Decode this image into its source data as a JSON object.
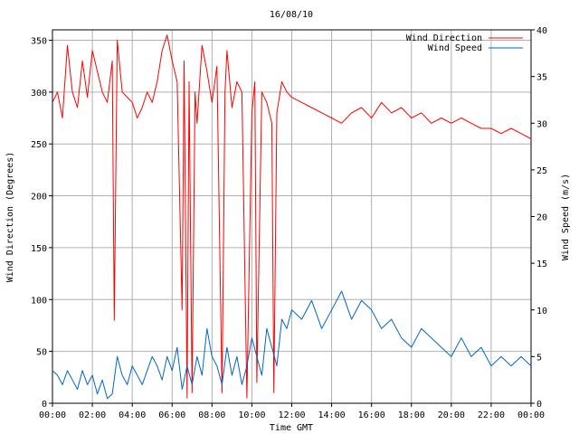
{
  "chart_data": {
    "type": "line",
    "title": "16/08/10",
    "xlabel": "Time GMT",
    "ylabel_left": "Wind Direction (Degrees)",
    "ylabel_right": "Wind Speed (m/s)",
    "x_ticks": [
      "00:00",
      "02:00",
      "04:00",
      "06:00",
      "08:00",
      "10:00",
      "12:00",
      "14:00",
      "16:00",
      "18:00",
      "20:00",
      "22:00",
      "00:00"
    ],
    "x_range_hours": [
      0,
      24
    ],
    "y_left_ticks": [
      0,
      50,
      100,
      150,
      200,
      250,
      300,
      350
    ],
    "y_left_range": [
      0,
      360
    ],
    "y_right_ticks": [
      0,
      5,
      10,
      15,
      20,
      25,
      30,
      35,
      40
    ],
    "y_right_range": [
      0,
      40
    ],
    "grid": true,
    "legend_position": "top-right",
    "series": [
      {
        "name": "Wind Direction",
        "axis": "left",
        "color": "#ff0000",
        "x": [
          0,
          0.25,
          0.5,
          0.75,
          1,
          1.25,
          1.5,
          1.75,
          2,
          2.25,
          2.5,
          2.75,
          3,
          3.1,
          3.25,
          3.5,
          3.75,
          4,
          4.25,
          4.5,
          4.75,
          5,
          5.25,
          5.5,
          5.75,
          6,
          6.25,
          6.5,
          6.6,
          6.75,
          6.85,
          7,
          7.15,
          7.25,
          7.5,
          7.75,
          8,
          8.25,
          8.5,
          8.65,
          8.75,
          9,
          9.25,
          9.5,
          9.75,
          10,
          10.15,
          10.25,
          10.5,
          10.75,
          11,
          11.1,
          11.25,
          11.5,
          11.75,
          12,
          12.5,
          13,
          13.5,
          14,
          14.5,
          15,
          15.5,
          16,
          16.5,
          17,
          17.5,
          18,
          18.5,
          19,
          19.5,
          20,
          20.5,
          21,
          21.5,
          22,
          22.5,
          23,
          23.5,
          24
        ],
        "values": [
          290,
          300,
          275,
          345,
          300,
          285,
          330,
          295,
          340,
          320,
          300,
          290,
          330,
          80,
          350,
          300,
          295,
          290,
          275,
          285,
          300,
          290,
          310,
          340,
          355,
          330,
          310,
          90,
          330,
          5,
          310,
          10,
          300,
          270,
          345,
          320,
          290,
          325,
          10,
          300,
          340,
          285,
          310,
          300,
          5,
          280,
          310,
          20,
          300,
          290,
          270,
          10,
          280,
          310,
          300,
          295,
          290,
          285,
          280,
          275,
          270,
          280,
          285,
          275,
          290,
          280,
          285,
          275,
          280,
          270,
          275,
          270,
          275,
          270,
          265,
          265,
          260,
          265,
          260,
          255
        ]
      },
      {
        "name": "Wind Speed",
        "axis": "right",
        "color": "#0066cc",
        "x": [
          0,
          0.25,
          0.5,
          0.75,
          1,
          1.25,
          1.5,
          1.75,
          2,
          2.25,
          2.5,
          2.75,
          3,
          3.25,
          3.5,
          3.75,
          4,
          4.25,
          4.5,
          4.75,
          5,
          5.25,
          5.5,
          5.75,
          6,
          6.25,
          6.5,
          6.75,
          7,
          7.25,
          7.5,
          7.75,
          8,
          8.25,
          8.5,
          8.75,
          9,
          9.25,
          9.5,
          9.75,
          10,
          10.25,
          10.5,
          10.75,
          11,
          11.25,
          11.5,
          11.75,
          12,
          12.5,
          13,
          13.5,
          14,
          14.5,
          15,
          15.5,
          16,
          16.5,
          17,
          17.5,
          18,
          18.5,
          19,
          19.5,
          20,
          20.5,
          21,
          21.5,
          22,
          22.5,
          23,
          23.5,
          24
        ],
        "values": [
          3.5,
          3,
          2,
          3.5,
          2.5,
          1.5,
          3.5,
          2,
          3,
          1,
          2.5,
          0.5,
          1,
          5,
          3,
          2,
          4,
          3,
          2,
          3.5,
          5,
          4,
          2.5,
          5,
          3.5,
          6,
          1.5,
          4,
          2,
          5,
          3,
          8,
          5,
          4,
          2,
          6,
          3,
          5,
          2,
          4,
          7,
          5,
          3,
          8,
          6,
          4,
          9,
          8,
          10,
          9,
          11,
          8,
          10,
          12,
          9,
          11,
          10,
          8,
          9,
          7,
          6,
          8,
          7,
          6,
          5,
          7,
          5,
          6,
          4,
          5,
          4,
          5,
          4
        ]
      }
    ]
  }
}
